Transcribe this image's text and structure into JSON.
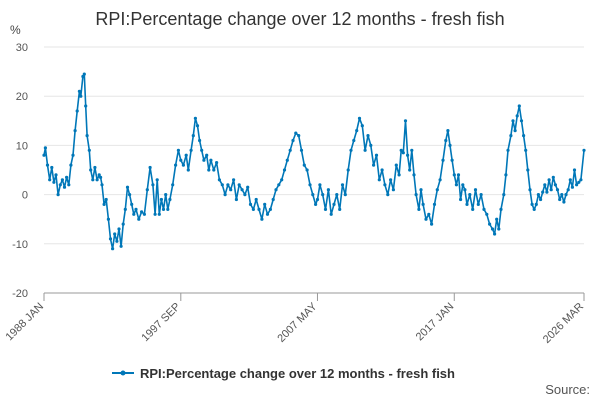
{
  "chart_data": {
    "type": "line",
    "title": "RPI:Percentage change over 12 months - fresh fish",
    "unit": "%",
    "ylim": [
      -20,
      30
    ],
    "yticks": [
      30,
      20,
      10,
      0,
      -10,
      -20
    ],
    "xlim": [
      1988.0,
      2026.17
    ],
    "xticks": [
      {
        "label": "1988 JAN",
        "value": 1988.0
      },
      {
        "label": "1997 SEP",
        "value": 1997.67
      },
      {
        "label": "2007 MAY",
        "value": 2007.33
      },
      {
        "label": "2017 JAN",
        "value": 2017.0
      },
      {
        "label": "2026 MAR",
        "value": 2026.17
      }
    ],
    "grid": true,
    "legend_position": "bottom",
    "source_label": "Source:",
    "series": [
      {
        "name": "RPI:Percentage change over 12 months - fresh fish",
        "color": "#0077b8",
        "points": [
          [
            1988.0,
            8
          ],
          [
            1988.1,
            9.5
          ],
          [
            1988.25,
            6
          ],
          [
            1988.4,
            3
          ],
          [
            1988.55,
            5.5
          ],
          [
            1988.7,
            2.5
          ],
          [
            1988.85,
            4
          ],
          [
            1989.0,
            0
          ],
          [
            1989.15,
            2
          ],
          [
            1989.3,
            3
          ],
          [
            1989.45,
            1.5
          ],
          [
            1989.6,
            3.5
          ],
          [
            1989.75,
            2
          ],
          [
            1989.9,
            6
          ],
          [
            1990.05,
            8
          ],
          [
            1990.2,
            13
          ],
          [
            1990.35,
            17
          ],
          [
            1990.5,
            21
          ],
          [
            1990.6,
            20
          ],
          [
            1990.75,
            24
          ],
          [
            1990.85,
            24.5
          ],
          [
            1990.95,
            18
          ],
          [
            1991.05,
            12
          ],
          [
            1991.2,
            9
          ],
          [
            1991.3,
            5
          ],
          [
            1991.45,
            3
          ],
          [
            1991.6,
            5.5
          ],
          [
            1991.75,
            3
          ],
          [
            1991.9,
            4
          ],
          [
            1992.0,
            3.5
          ],
          [
            1992.1,
            2
          ],
          [
            1992.25,
            -2
          ],
          [
            1992.4,
            -1
          ],
          [
            1992.55,
            -5
          ],
          [
            1992.7,
            -9
          ],
          [
            1992.85,
            -11
          ],
          [
            1993.0,
            -8
          ],
          [
            1993.15,
            -9.5
          ],
          [
            1993.3,
            -7
          ],
          [
            1993.45,
            -10.5
          ],
          [
            1993.6,
            -6
          ],
          [
            1993.75,
            -3
          ],
          [
            1993.9,
            1.5
          ],
          [
            1994.05,
            0
          ],
          [
            1994.2,
            -2
          ],
          [
            1994.35,
            -4
          ],
          [
            1994.5,
            -3
          ],
          [
            1994.7,
            -5
          ],
          [
            1994.9,
            -3.5
          ],
          [
            1995.1,
            -4
          ],
          [
            1995.3,
            1
          ],
          [
            1995.5,
            5.5
          ],
          [
            1995.7,
            2
          ],
          [
            1995.85,
            -4
          ],
          [
            1996.0,
            3
          ],
          [
            1996.15,
            -4
          ],
          [
            1996.3,
            -1
          ],
          [
            1996.45,
            -3
          ],
          [
            1996.6,
            0
          ],
          [
            1996.75,
            -3
          ],
          [
            1996.9,
            -1
          ],
          [
            1997.1,
            2
          ],
          [
            1997.3,
            6
          ],
          [
            1997.5,
            9
          ],
          [
            1997.67,
            7
          ],
          [
            1997.85,
            6
          ],
          [
            1998.05,
            8
          ],
          [
            1998.2,
            5
          ],
          [
            1998.4,
            9
          ],
          [
            1998.55,
            12
          ],
          [
            1998.7,
            15.5
          ],
          [
            1998.85,
            14
          ],
          [
            1999.0,
            11
          ],
          [
            1999.15,
            9
          ],
          [
            1999.3,
            7
          ],
          [
            1999.5,
            8
          ],
          [
            1999.65,
            5
          ],
          [
            1999.8,
            7
          ],
          [
            2000.0,
            5
          ],
          [
            2000.2,
            6.5
          ],
          [
            2000.4,
            3
          ],
          [
            2000.6,
            2
          ],
          [
            2000.8,
            0
          ],
          [
            2001.0,
            2
          ],
          [
            2001.2,
            1
          ],
          [
            2001.4,
            3
          ],
          [
            2001.6,
            -1
          ],
          [
            2001.8,
            2
          ],
          [
            2002.0,
            1
          ],
          [
            2002.2,
            0
          ],
          [
            2002.4,
            1.5
          ],
          [
            2002.6,
            -2
          ],
          [
            2002.8,
            -3
          ],
          [
            2003.0,
            -1
          ],
          [
            2003.2,
            -3
          ],
          [
            2003.4,
            -5
          ],
          [
            2003.6,
            -2
          ],
          [
            2003.8,
            -4
          ],
          [
            2004.0,
            -3
          ],
          [
            2004.2,
            -1
          ],
          [
            2004.4,
            1
          ],
          [
            2004.6,
            2
          ],
          [
            2004.8,
            3
          ],
          [
            2005.0,
            5
          ],
          [
            2005.2,
            7
          ],
          [
            2005.4,
            9
          ],
          [
            2005.6,
            11
          ],
          [
            2005.8,
            12.5
          ],
          [
            2006.0,
            12
          ],
          [
            2006.2,
            9
          ],
          [
            2006.4,
            6
          ],
          [
            2006.6,
            5
          ],
          [
            2006.8,
            2
          ],
          [
            2007.0,
            0
          ],
          [
            2007.2,
            -2
          ],
          [
            2007.33,
            -1
          ],
          [
            2007.5,
            2
          ],
          [
            2007.7,
            0
          ],
          [
            2007.9,
            -3
          ],
          [
            2008.1,
            1
          ],
          [
            2008.3,
            -4
          ],
          [
            2008.5,
            -2
          ],
          [
            2008.7,
            0
          ],
          [
            2008.9,
            -3
          ],
          [
            2009.1,
            2
          ],
          [
            2009.3,
            0
          ],
          [
            2009.5,
            5
          ],
          [
            2009.7,
            9
          ],
          [
            2009.9,
            11
          ],
          [
            2010.1,
            13
          ],
          [
            2010.3,
            15.5
          ],
          [
            2010.5,
            14
          ],
          [
            2010.7,
            9
          ],
          [
            2010.9,
            12
          ],
          [
            2011.1,
            10
          ],
          [
            2011.3,
            6
          ],
          [
            2011.5,
            8
          ],
          [
            2011.7,
            3
          ],
          [
            2011.9,
            5
          ],
          [
            2012.1,
            2
          ],
          [
            2012.3,
            0
          ],
          [
            2012.5,
            3
          ],
          [
            2012.7,
            1
          ],
          [
            2012.9,
            6
          ],
          [
            2013.1,
            4
          ],
          [
            2013.25,
            9
          ],
          [
            2013.4,
            8.5
          ],
          [
            2013.55,
            15
          ],
          [
            2013.7,
            8
          ],
          [
            2013.85,
            5
          ],
          [
            2014.0,
            9
          ],
          [
            2014.15,
            4
          ],
          [
            2014.3,
            0
          ],
          [
            2014.5,
            -3
          ],
          [
            2014.65,
            1
          ],
          [
            2014.8,
            -2
          ],
          [
            2015.0,
            -5
          ],
          [
            2015.2,
            -4
          ],
          [
            2015.4,
            -6
          ],
          [
            2015.6,
            -2
          ],
          [
            2015.8,
            1
          ],
          [
            2016.0,
            3
          ],
          [
            2016.2,
            7
          ],
          [
            2016.4,
            11
          ],
          [
            2016.55,
            13
          ],
          [
            2016.7,
            10
          ],
          [
            2016.85,
            7
          ],
          [
            2017.0,
            4
          ],
          [
            2017.15,
            2
          ],
          [
            2017.3,
            4
          ],
          [
            2017.45,
            -1
          ],
          [
            2017.6,
            2
          ],
          [
            2017.75,
            1
          ],
          [
            2017.9,
            -2
          ],
          [
            2018.1,
            0
          ],
          [
            2018.3,
            -3
          ],
          [
            2018.5,
            1
          ],
          [
            2018.7,
            -2
          ],
          [
            2018.9,
            0
          ],
          [
            2019.1,
            -3
          ],
          [
            2019.3,
            -4
          ],
          [
            2019.5,
            -6
          ],
          [
            2019.7,
            -7
          ],
          [
            2019.85,
            -8
          ],
          [
            2020.0,
            -5
          ],
          [
            2020.15,
            -7
          ],
          [
            2020.3,
            -3
          ],
          [
            2020.5,
            0
          ],
          [
            2020.65,
            4
          ],
          [
            2020.8,
            9
          ],
          [
            2021.0,
            12
          ],
          [
            2021.15,
            15
          ],
          [
            2021.3,
            13
          ],
          [
            2021.45,
            16
          ],
          [
            2021.6,
            18
          ],
          [
            2021.75,
            15
          ],
          [
            2021.9,
            12
          ],
          [
            2022.05,
            9
          ],
          [
            2022.2,
            5
          ],
          [
            2022.35,
            1
          ],
          [
            2022.5,
            -2
          ],
          [
            2022.65,
            -3
          ],
          [
            2022.8,
            -2
          ],
          [
            2022.95,
            0
          ],
          [
            2023.1,
            -1
          ],
          [
            2023.25,
            0.5
          ],
          [
            2023.4,
            2
          ],
          [
            2023.55,
            0.5
          ],
          [
            2023.7,
            3
          ],
          [
            2023.85,
            1
          ],
          [
            2024.0,
            3.5
          ],
          [
            2024.15,
            2
          ],
          [
            2024.3,
            1
          ],
          [
            2024.45,
            -1
          ],
          [
            2024.6,
            0
          ],
          [
            2024.75,
            -1.5
          ],
          [
            2024.9,
            0
          ],
          [
            2025.05,
            1
          ],
          [
            2025.2,
            3
          ],
          [
            2025.35,
            1.5
          ],
          [
            2025.5,
            5
          ],
          [
            2025.65,
            2
          ],
          [
            2025.8,
            2.5
          ],
          [
            2025.95,
            3
          ],
          [
            2026.17,
            9
          ]
        ]
      }
    ]
  }
}
